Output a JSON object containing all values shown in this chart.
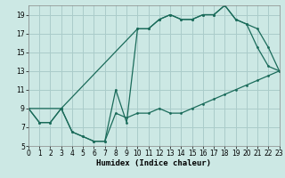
{
  "xlabel": "Humidex (Indice chaleur)",
  "bg_color": "#cce8e4",
  "grid_color": "#aaccca",
  "line_color": "#1a6b5a",
  "line1_x": [
    0,
    1,
    2,
    3,
    4,
    5,
    6,
    7,
    8,
    9,
    10,
    11,
    12,
    13,
    14,
    15,
    16,
    17,
    18,
    19,
    20,
    21,
    22,
    23
  ],
  "line1_y": [
    9.0,
    7.5,
    7.5,
    9.0,
    6.5,
    6.0,
    5.5,
    5.5,
    8.5,
    8.0,
    8.5,
    8.5,
    9.0,
    8.5,
    8.5,
    9.0,
    9.5,
    10.0,
    10.5,
    11.0,
    11.5,
    12.0,
    12.5,
    13.0
  ],
  "line2_x": [
    0,
    1,
    2,
    3,
    4,
    5,
    6,
    7,
    8,
    9,
    10,
    11,
    12,
    13,
    14,
    15,
    16,
    17,
    18,
    19,
    20,
    21,
    22,
    23
  ],
  "line2_y": [
    9.0,
    7.5,
    7.5,
    9.0,
    6.5,
    6.0,
    5.5,
    5.5,
    11.0,
    7.5,
    17.5,
    17.5,
    18.5,
    19.0,
    18.5,
    18.5,
    19.0,
    19.0,
    20.0,
    18.5,
    18.0,
    15.5,
    13.5,
    13.0
  ],
  "line3_x": [
    0,
    3,
    10,
    11,
    12,
    13,
    14,
    15,
    16,
    17,
    18,
    19,
    20,
    21,
    22,
    23
  ],
  "line3_y": [
    9.0,
    9.0,
    17.5,
    17.5,
    18.5,
    19.0,
    18.5,
    18.5,
    19.0,
    19.0,
    20.0,
    18.5,
    18.0,
    17.5,
    15.5,
    13.0
  ],
  "xlim": [
    0,
    23
  ],
  "ylim": [
    5.0,
    20.0
  ],
  "xticks": [
    0,
    1,
    2,
    3,
    4,
    5,
    6,
    7,
    8,
    9,
    10,
    11,
    12,
    13,
    14,
    15,
    16,
    17,
    18,
    19,
    20,
    21,
    22,
    23
  ],
  "yticks": [
    5,
    7,
    9,
    11,
    13,
    15,
    17,
    19
  ],
  "tick_fontsize": 5.5,
  "label_fontsize": 6.5
}
